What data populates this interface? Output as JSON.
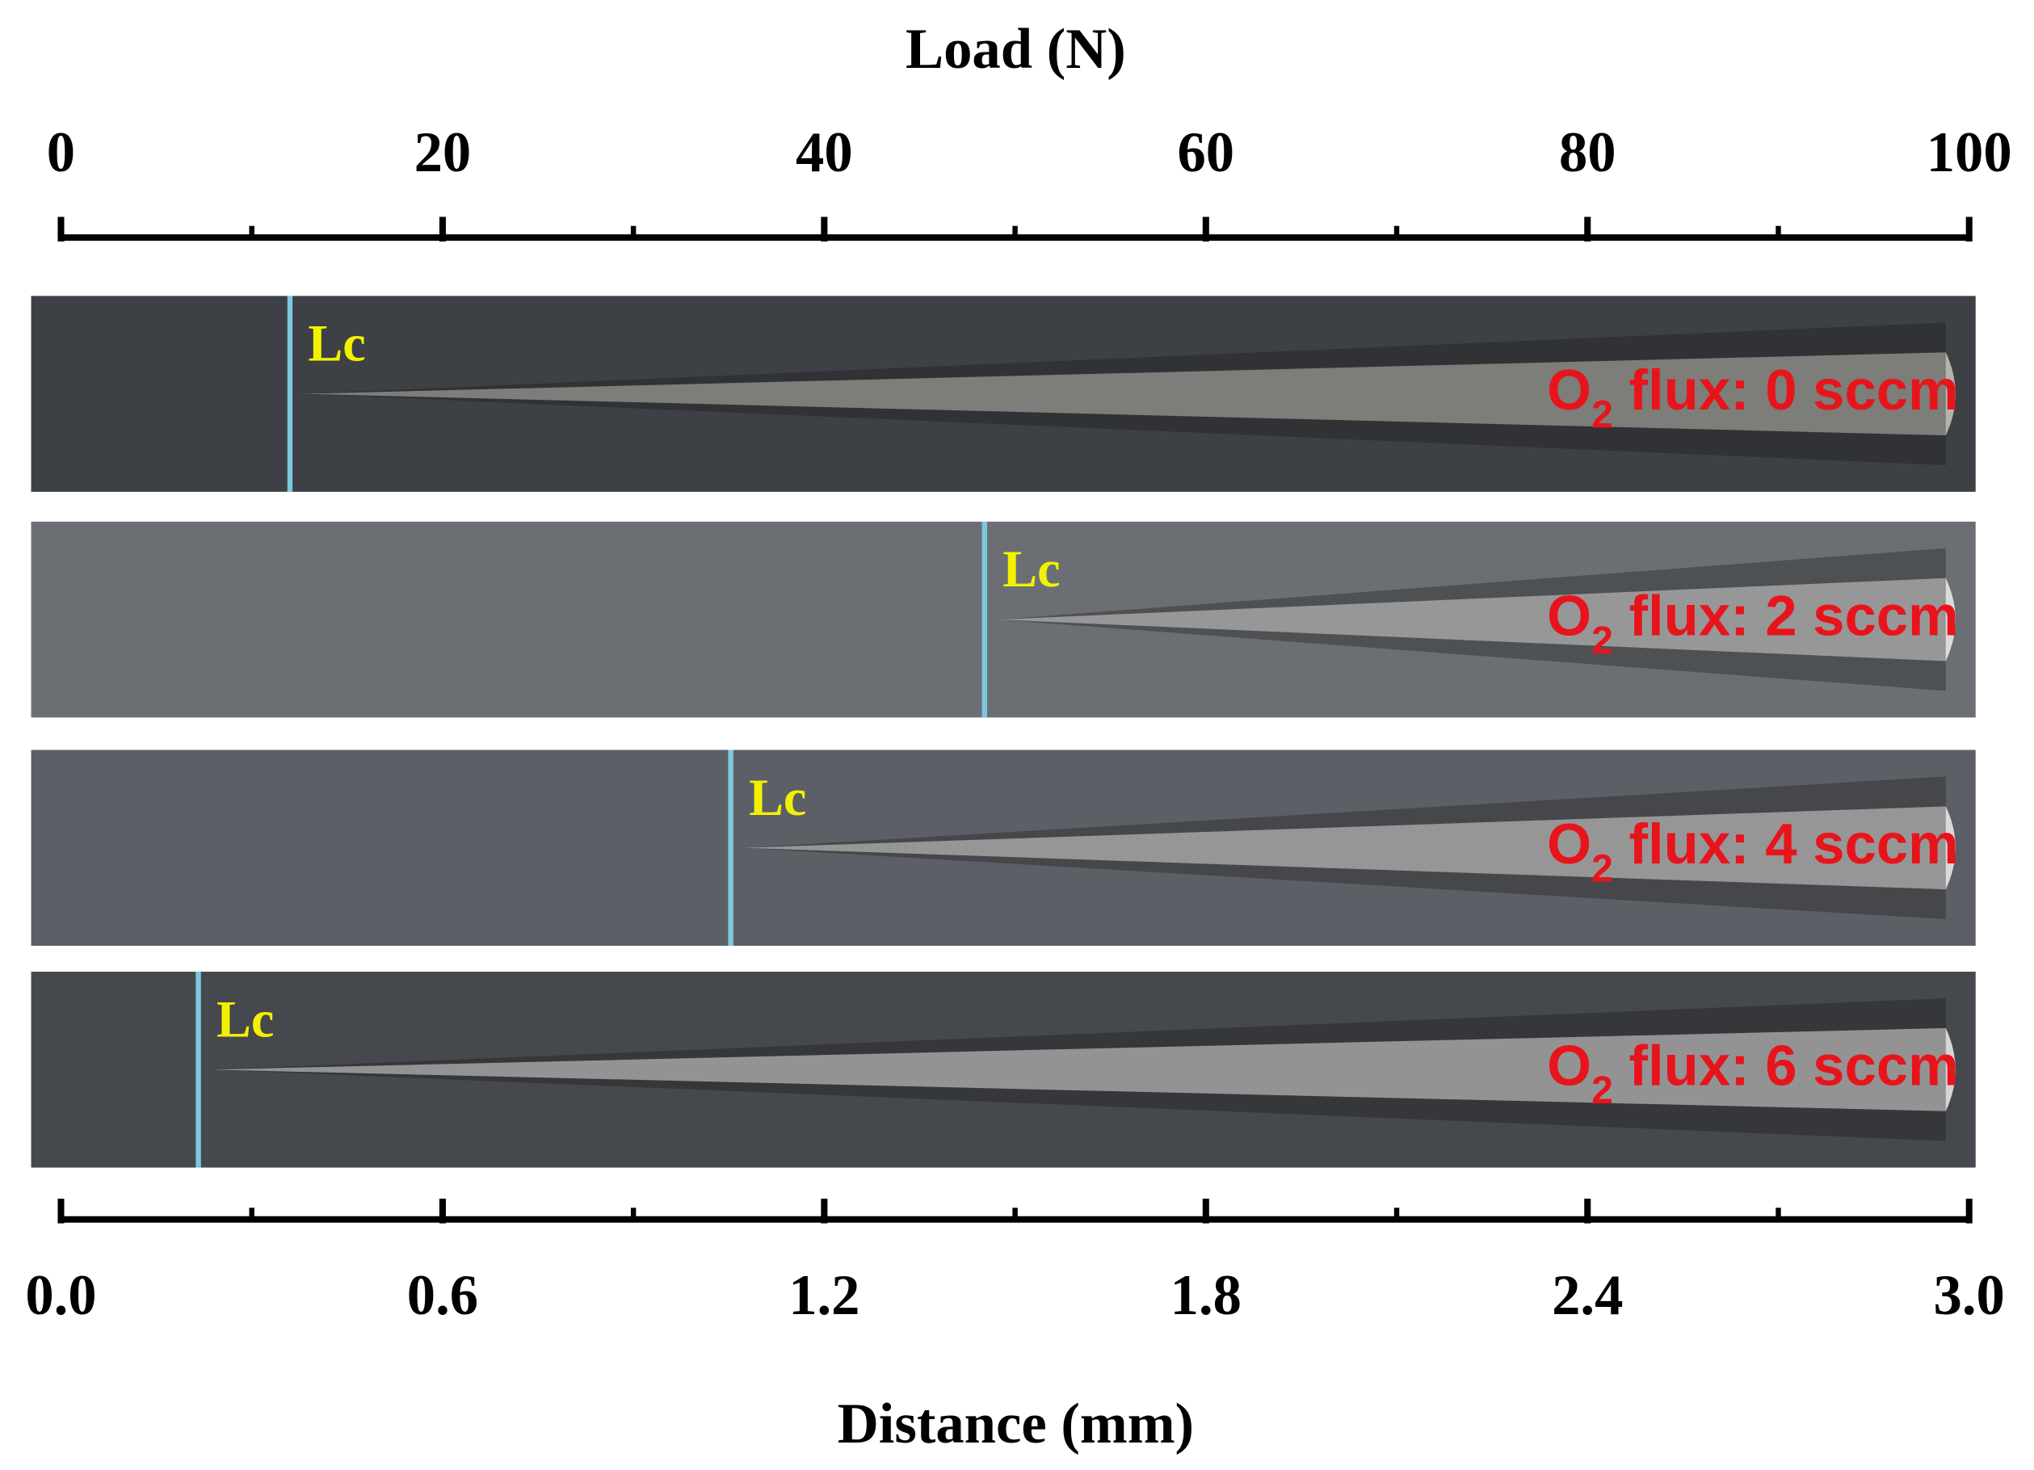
{
  "chart_data": {
    "type": "scratch",
    "xlabel": "Load (N)",
    "x2label": "Distance (mm)",
    "xlim": [
      0,
      100
    ],
    "xticks": [
      0,
      20,
      40,
      60,
      80,
      100
    ],
    "xminorticks": [
      10,
      30,
      50,
      70,
      90
    ],
    "x2lim": [
      0,
      3
    ],
    "x2ticks": [
      {
        "value": 0,
        "label": "0.0"
      },
      0.6,
      1.2,
      1.8,
      2.4,
      {
        "value": 3,
        "label": "3.0"
      }
    ],
    "marker_color": "#7cc8e0",
    "marker_label_color": "#f2f200",
    "flux_label_color": "#e8141c",
    "panels": [
      {
        "marker_label": "Lc",
        "lc": 12.0,
        "flux_prefix": "O",
        "flux_sub": "2",
        "flux_text": " flux: 0 sccm"
      },
      {
        "marker_label": "Lc",
        "lc": 48.4,
        "flux_prefix": "O",
        "flux_sub": "2",
        "flux_text": " flux: 2 sccm"
      },
      {
        "marker_label": "Lc",
        "lc": 35.1,
        "flux_prefix": "O",
        "flux_sub": "2",
        "flux_text": " flux: 4 sccm"
      },
      {
        "marker_label": "Lc",
        "lc": 7.2,
        "flux_prefix": "O",
        "flux_sub": "2",
        "flux_text": " flux: 6 sccm"
      }
    ]
  }
}
